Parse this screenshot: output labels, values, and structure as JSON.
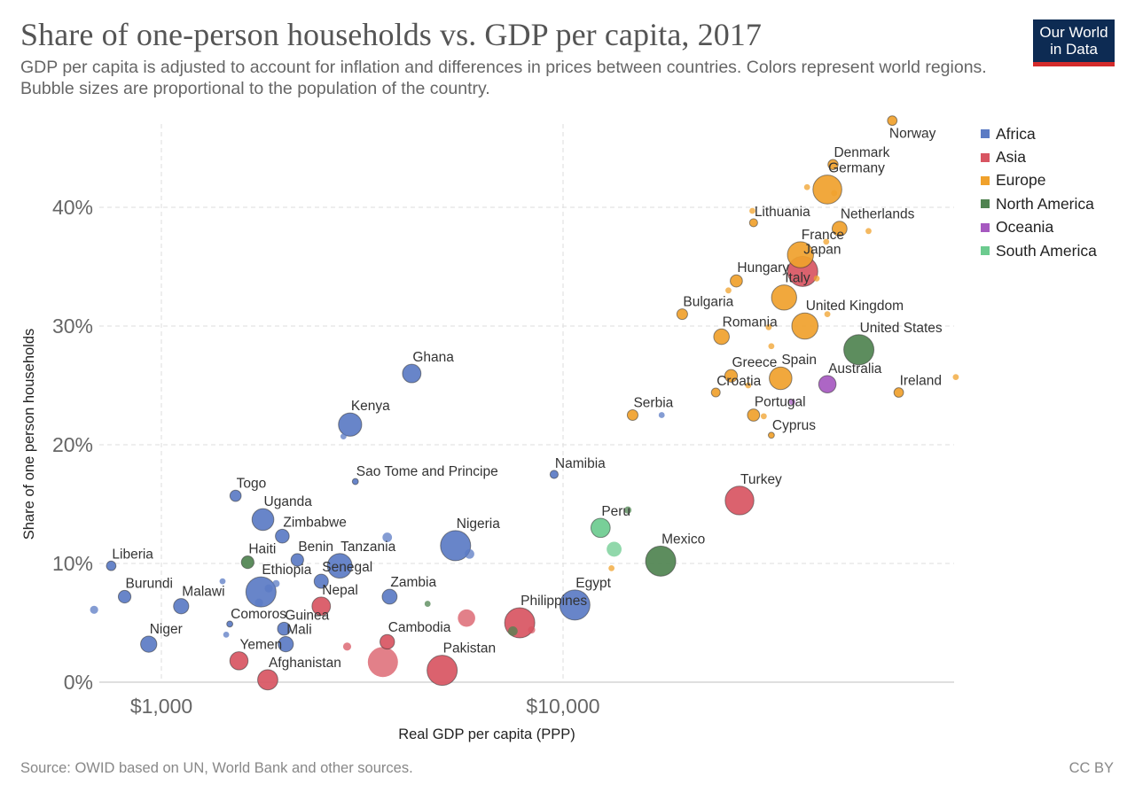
{
  "header": {
    "title": "Share of one-person households vs. GDP per capita, 2017",
    "subtitle": "GDP per capita is adjusted to account for inflation and differences in prices between countries. Colors represent world regions. Bubble sizes are proportional to the population of the country.",
    "logo_line1": "Our World",
    "logo_line2": "in Data"
  },
  "footer": {
    "source": "Source: OWID based on UN, World Bank and other sources.",
    "license": "CC BY"
  },
  "colors": {
    "Africa": "#5b7bc4",
    "Asia": "#d85562",
    "Europe": "#f0a12c",
    "North America": "#4f8350",
    "Oceania": "#a659c0",
    "South America": "#6ccb8f",
    "logo_bg": "#0d2b53",
    "logo_bar": "#d42b2b"
  },
  "chart_data": {
    "type": "scatter",
    "title": "Share of one-person households vs. GDP per capita, 2017",
    "xlabel": "Real GDP per capita (PPP)",
    "ylabel": "Share of one person households",
    "xscale": "log",
    "xlim": [
      600,
      80000
    ],
    "ylim": [
      0,
      46
    ],
    "xticks": [
      {
        "value": 1000,
        "label": "$1,000"
      },
      {
        "value": 10000,
        "label": "$10,000"
      }
    ],
    "yticks": [
      {
        "value": 0,
        "label": "0%"
      },
      {
        "value": 10,
        "label": "10%"
      },
      {
        "value": 20,
        "label": "20%"
      },
      {
        "value": 30,
        "label": "30%"
      },
      {
        "value": 40,
        "label": "40%"
      }
    ],
    "grid": true,
    "legend_position": "right",
    "legend": [
      "Africa",
      "Asia",
      "Europe",
      "North America",
      "Oceania",
      "South America"
    ],
    "size_encoding": "population",
    "points": [
      {
        "label": "Norway",
        "region": "Europe",
        "gdp": 66000,
        "share": 47.3,
        "pop_m": 5,
        "label_pos": "below"
      },
      {
        "label": "Denmark",
        "region": "Europe",
        "gdp": 47000,
        "share": 43.6,
        "pop_m": 6,
        "label_pos": "above"
      },
      {
        "label": "Germany",
        "region": "Europe",
        "gdp": 45500,
        "share": 41.5,
        "pop_m": 82,
        "label_pos": "above"
      },
      {
        "label": "",
        "region": "Europe",
        "gdp": 40500,
        "share": 41.7,
        "pop_m": 1
      },
      {
        "label": "",
        "region": "Europe",
        "gdp": 47300,
        "share": 41.2,
        "pop_m": 1
      },
      {
        "label": "Lithuania",
        "region": "Europe",
        "gdp": 29800,
        "share": 38.7,
        "pop_m": 3,
        "label_pos": "above"
      },
      {
        "label": "",
        "region": "Europe",
        "gdp": 29600,
        "share": 39.7,
        "pop_m": 1
      },
      {
        "label": "Netherlands",
        "region": "Europe",
        "gdp": 48800,
        "share": 38.2,
        "pop_m": 17,
        "label_pos": "above"
      },
      {
        "label": "",
        "region": "Europe",
        "gdp": 57600,
        "share": 38.0,
        "pop_m": 1
      },
      {
        "label": "France",
        "region": "Europe",
        "gdp": 39000,
        "share": 36.0,
        "pop_m": 65,
        "label_pos": "above"
      },
      {
        "label": "",
        "region": "Europe",
        "gdp": 45200,
        "share": 37.1,
        "pop_m": 1
      },
      {
        "label": "Japan",
        "region": "Asia",
        "gdp": 39500,
        "share": 34.6,
        "pop_m": 127,
        "label_pos": "above"
      },
      {
        "label": "",
        "region": "Europe",
        "gdp": 42800,
        "share": 34.0,
        "pop_m": 1
      },
      {
        "label": "Hungary",
        "region": "Europe",
        "gdp": 27000,
        "share": 33.8,
        "pop_m": 10,
        "label_pos": "above"
      },
      {
        "label": "",
        "region": "Europe",
        "gdp": 25800,
        "share": 33.0,
        "pop_m": 1
      },
      {
        "label": "Italy",
        "region": "Europe",
        "gdp": 35500,
        "share": 32.4,
        "pop_m": 60,
        "label_pos": "above"
      },
      {
        "label": "Bulgaria",
        "region": "Europe",
        "gdp": 19800,
        "share": 31.0,
        "pop_m": 7,
        "label_pos": "above"
      },
      {
        "label": "United Kingdom",
        "region": "Europe",
        "gdp": 40000,
        "share": 30.0,
        "pop_m": 66,
        "label_pos": "above"
      },
      {
        "label": "",
        "region": "Europe",
        "gdp": 45500,
        "share": 31.0,
        "pop_m": 1
      },
      {
        "label": "Romania",
        "region": "Europe",
        "gdp": 24800,
        "share": 29.1,
        "pop_m": 19,
        "label_pos": "above"
      },
      {
        "label": "",
        "region": "Europe",
        "gdp": 32500,
        "share": 29.9,
        "pop_m": 1
      },
      {
        "label": "",
        "region": "Europe",
        "gdp": 33000,
        "share": 28.3,
        "pop_m": 1
      },
      {
        "label": "United States",
        "region": "North America",
        "gdp": 54500,
        "share": 28.0,
        "pop_m": 325,
        "label_pos": "above"
      },
      {
        "label": "Greece",
        "region": "Europe",
        "gdp": 26200,
        "share": 25.8,
        "pop_m": 11,
        "label_pos": "above"
      },
      {
        "label": "Croatia",
        "region": "Europe",
        "gdp": 24000,
        "share": 24.4,
        "pop_m": 4,
        "label_pos": "above"
      },
      {
        "label": "",
        "region": "Europe",
        "gdp": 28900,
        "share": 25.0,
        "pop_m": 1
      },
      {
        "label": "Spain",
        "region": "Europe",
        "gdp": 34800,
        "share": 25.6,
        "pop_m": 47,
        "label_pos": "above"
      },
      {
        "label": "Australia",
        "region": "Oceania",
        "gdp": 45500,
        "share": 25.1,
        "pop_m": 25,
        "label_pos": "above"
      },
      {
        "label": "",
        "region": "Oceania",
        "gdp": 37200,
        "share": 23.6,
        "pop_m": 1
      },
      {
        "label": "Ireland",
        "region": "Europe",
        "gdp": 68500,
        "share": 24.4,
        "pop_m": 5,
        "label_pos": "above"
      },
      {
        "label": "",
        "region": "Europe",
        "gdp": 95000,
        "share": 25.7,
        "pop_m": 1
      },
      {
        "label": "Portugal",
        "region": "Europe",
        "gdp": 29800,
        "share": 22.5,
        "pop_m": 10,
        "label_pos": "above"
      },
      {
        "label": "",
        "region": "Europe",
        "gdp": 31600,
        "share": 22.4,
        "pop_m": 1
      },
      {
        "label": "Cyprus",
        "region": "Europe",
        "gdp": 33000,
        "share": 20.8,
        "pop_m": 1,
        "label_pos": "above"
      },
      {
        "label": "Serbia",
        "region": "Europe",
        "gdp": 14900,
        "share": 22.5,
        "pop_m": 7,
        "label_pos": "above"
      },
      {
        "label": "",
        "region": "Africa",
        "gdp": 17600,
        "share": 22.5,
        "pop_m": 1
      },
      {
        "label": "Ghana",
        "region": "Africa",
        "gdp": 4200,
        "share": 26.0,
        "pop_m": 29,
        "label_pos": "above"
      },
      {
        "label": "Kenya",
        "region": "Africa",
        "gdp": 2950,
        "share": 21.7,
        "pop_m": 50,
        "label_pos": "above"
      },
      {
        "label": "",
        "region": "Africa",
        "gdp": 2840,
        "share": 20.7,
        "pop_m": 1
      },
      {
        "label": "Sao Tome and Principe",
        "region": "Africa",
        "gdp": 3040,
        "share": 16.9,
        "pop_m": 1,
        "label_pos": "above"
      },
      {
        "label": "Namibia",
        "region": "Africa",
        "gdp": 9500,
        "share": 17.5,
        "pop_m": 3,
        "label_pos": "above"
      },
      {
        "label": "Turkey",
        "region": "Asia",
        "gdp": 27500,
        "share": 15.3,
        "pop_m": 81,
        "label_pos": "above"
      },
      {
        "label": "Togo",
        "region": "Africa",
        "gdp": 1530,
        "share": 15.7,
        "pop_m": 8,
        "label_pos": "above"
      },
      {
        "label": "Uganda",
        "region": "Africa",
        "gdp": 1790,
        "share": 13.7,
        "pop_m": 43,
        "label_pos": "above"
      },
      {
        "label": "Zimbabwe",
        "region": "Africa",
        "gdp": 2000,
        "share": 12.3,
        "pop_m": 14,
        "label_pos": "above"
      },
      {
        "label": "",
        "region": "Africa",
        "gdp": 3650,
        "share": 12.2,
        "pop_m": 5
      },
      {
        "label": "Nigeria",
        "region": "Africa",
        "gdp": 5400,
        "share": 11.5,
        "pop_m": 191,
        "label_pos": "above"
      },
      {
        "label": "",
        "region": "Africa",
        "gdp": 5850,
        "share": 10.8,
        "pop_m": 5
      },
      {
        "label": "Peru",
        "region": "South America",
        "gdp": 12400,
        "share": 13.0,
        "pop_m": 32,
        "label_pos": "above"
      },
      {
        "label": "",
        "region": "North America",
        "gdp": 14500,
        "share": 14.5,
        "pop_m": 2
      },
      {
        "label": "",
        "region": "South America",
        "gdp": 13400,
        "share": 11.2,
        "pop_m": 17
      },
      {
        "label": "",
        "region": "Europe",
        "gdp": 13200,
        "share": 9.6,
        "pop_m": 1
      },
      {
        "label": "Mexico",
        "region": "North America",
        "gdp": 17500,
        "share": 10.2,
        "pop_m": 129,
        "label_pos": "above"
      },
      {
        "label": "Liberia",
        "region": "Africa",
        "gdp": 750,
        "share": 9.8,
        "pop_m": 5,
        "label_pos": "above"
      },
      {
        "label": "Haiti",
        "region": "North America",
        "gdp": 1640,
        "share": 10.1,
        "pop_m": 11,
        "label_pos": "above"
      },
      {
        "label": "Benin",
        "region": "Africa",
        "gdp": 2180,
        "share": 10.3,
        "pop_m": 11,
        "label_pos": "above"
      },
      {
        "label": "Tanzania",
        "region": "Africa",
        "gdp": 2780,
        "share": 9.8,
        "pop_m": 57,
        "label_pos": "above"
      },
      {
        "label": "Senegal",
        "region": "Africa",
        "gdp": 2500,
        "share": 8.5,
        "pop_m": 15,
        "label_pos": "above"
      },
      {
        "label": "",
        "region": "Africa",
        "gdp": 1420,
        "share": 8.5,
        "pop_m": 1
      },
      {
        "label": "",
        "region": "Africa",
        "gdp": 1930,
        "share": 8.3,
        "pop_m": 2
      },
      {
        "label": "Ethiopia",
        "region": "Africa",
        "gdp": 1770,
        "share": 7.6,
        "pop_m": 105,
        "label_pos": "above"
      },
      {
        "label": "",
        "region": "Africa",
        "gdp": 1850,
        "share": 7.9,
        "pop_m": 3
      },
      {
        "label": "",
        "region": "Africa",
        "gdp": 1750,
        "share": 6.7,
        "pop_m": 3
      },
      {
        "label": "Burundi",
        "region": "Africa",
        "gdp": 810,
        "share": 7.2,
        "pop_m": 11,
        "label_pos": "above"
      },
      {
        "label": "",
        "region": "Africa",
        "gdp": 680,
        "share": 6.1,
        "pop_m": 3
      },
      {
        "label": "Malawi",
        "region": "Africa",
        "gdp": 1120,
        "share": 6.4,
        "pop_m": 18,
        "label_pos": "above"
      },
      {
        "label": "Zambia",
        "region": "Africa",
        "gdp": 3700,
        "share": 7.2,
        "pop_m": 17,
        "label_pos": "above"
      },
      {
        "label": "",
        "region": "North America",
        "gdp": 4600,
        "share": 6.6,
        "pop_m": 1
      },
      {
        "label": "Nepal",
        "region": "Asia",
        "gdp": 2500,
        "share": 6.4,
        "pop_m": 29,
        "label_pos": "above"
      },
      {
        "label": "Egypt",
        "region": "Africa",
        "gdp": 10700,
        "share": 6.5,
        "pop_m": 97,
        "label_pos": "above"
      },
      {
        "label": "",
        "region": "Asia",
        "gdp": 5750,
        "share": 5.4,
        "pop_m": 25
      },
      {
        "label": "Philippines",
        "region": "Asia",
        "gdp": 7800,
        "share": 5.0,
        "pop_m": 105,
        "label_pos": "above"
      },
      {
        "label": "",
        "region": "North America",
        "gdp": 7500,
        "share": 4.3,
        "pop_m": 5
      },
      {
        "label": "",
        "region": "Asia",
        "gdp": 8350,
        "share": 4.4,
        "pop_m": 2
      },
      {
        "label": "Comoros",
        "region": "Africa",
        "gdp": 1480,
        "share": 4.9,
        "pop_m": 1,
        "label_pos": "above"
      },
      {
        "label": "",
        "region": "Africa",
        "gdp": 1450,
        "share": 4.0,
        "pop_m": 1
      },
      {
        "label": "Guinea",
        "region": "Africa",
        "gdp": 2020,
        "share": 4.5,
        "pop_m": 12,
        "label_pos": "above"
      },
      {
        "label": "Mali",
        "region": "Africa",
        "gdp": 2040,
        "share": 3.2,
        "pop_m": 18,
        "label_pos": "above"
      },
      {
        "label": "Niger",
        "region": "Africa",
        "gdp": 930,
        "share": 3.2,
        "pop_m": 21,
        "label_pos": "above"
      },
      {
        "label": "Cambodia",
        "region": "Asia",
        "gdp": 3650,
        "share": 3.4,
        "pop_m": 16,
        "label_pos": "above"
      },
      {
        "label": "",
        "region": "Asia",
        "gdp": 2900,
        "share": 3.0,
        "pop_m": 3
      },
      {
        "label": "",
        "region": "Asia",
        "gdp": 3560,
        "share": 1.7,
        "pop_m": 165
      },
      {
        "label": "Yemen",
        "region": "Asia",
        "gdp": 1560,
        "share": 1.8,
        "pop_m": 28,
        "label_pos": "above"
      },
      {
        "label": "Afghanistan",
        "region": "Asia",
        "gdp": 1840,
        "share": 0.2,
        "pop_m": 36,
        "label_pos": "above"
      },
      {
        "label": "Pakistan",
        "region": "Asia",
        "gdp": 5000,
        "share": 1.0,
        "pop_m": 197,
        "label_pos": "above"
      }
    ]
  }
}
